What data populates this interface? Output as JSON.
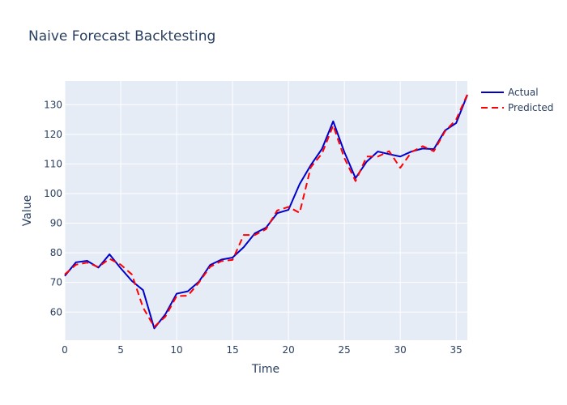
{
  "chart_data": {
    "type": "line",
    "title": "Naive Forecast Backtesting",
    "xlabel": "Time",
    "ylabel": "Value",
    "xlim": [
      0,
      36
    ],
    "ylim": [
      50.5,
      138
    ],
    "xticks": [
      0,
      5,
      10,
      15,
      20,
      25,
      30,
      35
    ],
    "yticks": [
      60,
      70,
      80,
      90,
      100,
      110,
      120,
      130
    ],
    "grid": true,
    "legend_position": "top-right",
    "x": [
      0,
      1,
      2,
      3,
      4,
      5,
      6,
      7,
      8,
      9,
      10,
      11,
      12,
      13,
      14,
      15,
      16,
      17,
      18,
      19,
      20,
      21,
      22,
      23,
      24,
      25,
      26,
      27,
      28,
      29,
      30,
      31,
      32,
      33,
      34,
      35,
      36
    ],
    "series": [
      {
        "name": "Actual",
        "color": "#0000cd",
        "dash": "solid",
        "values": [
          72.2,
          76.8,
          77.3,
          75.0,
          79.5,
          74.8,
          70.5,
          67.4,
          54.5,
          59.3,
          66.2,
          67.0,
          70.3,
          75.9,
          77.7,
          78.4,
          81.9,
          86.6,
          88.5,
          93.4,
          94.5,
          103.2,
          109.6,
          115.1,
          124.4,
          114.0,
          105.2,
          110.8,
          114.2,
          113.3,
          112.5,
          114.2,
          115.2,
          115.0,
          121.3,
          123.8,
          133.3
        ]
      },
      {
        "name": "Predicted",
        "color": "#ff0000",
        "dash": "8,5",
        "values": [
          72.7,
          76.0,
          76.7,
          75.2,
          78.0,
          76.0,
          72.7,
          61.5,
          55.0,
          58.5,
          65.4,
          65.5,
          70.0,
          75.3,
          77.2,
          77.6,
          86.0,
          86.0,
          88.0,
          94.3,
          95.5,
          93.5,
          108.9,
          113.5,
          123.0,
          112.0,
          104.2,
          112.5,
          112.5,
          114.3,
          108.7,
          114.0,
          116.0,
          114.3,
          121.0,
          125.0,
          133.5
        ]
      }
    ]
  }
}
